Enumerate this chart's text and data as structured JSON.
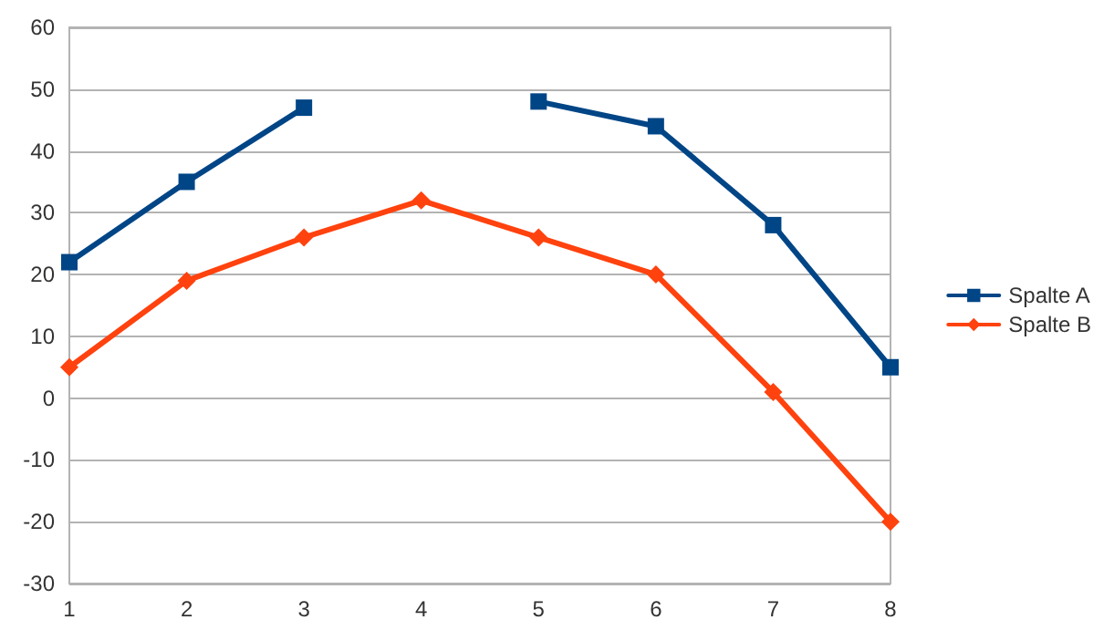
{
  "chart_data": {
    "type": "line",
    "categories": [
      "1",
      "2",
      "3",
      "4",
      "5",
      "6",
      "7",
      "8"
    ],
    "series": [
      {
        "name": "Spalte A",
        "color": "#004586",
        "marker": "square",
        "values": [
          22,
          35,
          47,
          null,
          48,
          44,
          28,
          5
        ]
      },
      {
        "name": "Spalte B",
        "color": "#ff420e",
        "marker": "diamond",
        "values": [
          5,
          19,
          26,
          32,
          26,
          20,
          1,
          -20
        ]
      }
    ],
    "ylim": [
      -30,
      60
    ],
    "yticks": [
      -30,
      -20,
      -10,
      0,
      10,
      20,
      30,
      40,
      50,
      60
    ],
    "grid": "y",
    "legend": "right"
  }
}
